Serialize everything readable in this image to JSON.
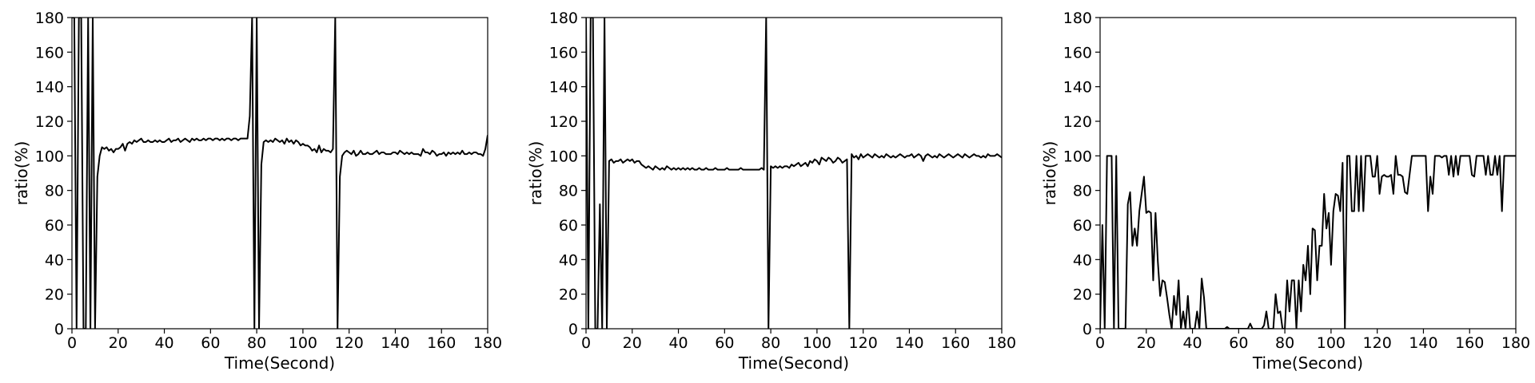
{
  "chart_data": [
    {
      "type": "line",
      "xlabel": "Time(Second)",
      "ylabel": "ratio(%)",
      "xlim": [
        0,
        180
      ],
      "ylim": [
        0,
        180
      ],
      "xticks": [
        0,
        20,
        40,
        60,
        80,
        100,
        120,
        140,
        160,
        180
      ],
      "yticks": [
        0,
        20,
        40,
        60,
        80,
        100,
        120,
        140,
        160,
        180
      ],
      "grid": false,
      "series": [
        {
          "x": [
            0,
            1,
            2,
            3,
            4,
            5,
            6,
            7,
            8,
            9,
            10,
            11,
            12,
            13,
            14,
            15,
            16,
            17,
            18,
            19,
            20,
            21,
            22,
            23,
            24,
            25,
            26,
            27,
            28,
            29,
            30,
            31,
            32,
            33,
            34,
            35,
            36,
            37,
            38,
            39,
            40,
            41,
            42,
            43,
            44,
            45,
            46,
            47,
            48,
            49,
            50,
            51,
            52,
            53,
            54,
            55,
            56,
            57,
            58,
            59,
            60,
            61,
            62,
            63,
            64,
            65,
            66,
            67,
            68,
            69,
            70,
            71,
            72,
            73,
            74,
            75,
            76,
            77,
            78,
            79,
            80,
            81,
            82,
            83,
            84,
            85,
            86,
            87,
            88,
            89,
            90,
            91,
            92,
            93,
            94,
            95,
            96,
            97,
            98,
            99,
            100,
            101,
            102,
            103,
            104,
            105,
            106,
            107,
            108,
            109,
            110,
            111,
            112,
            113,
            114,
            115,
            116,
            117,
            118,
            119,
            120,
            121,
            122,
            123,
            124,
            125,
            126,
            127,
            128,
            129,
            130,
            131,
            132,
            133,
            134,
            135,
            136,
            137,
            138,
            139,
            140,
            141,
            142,
            143,
            144,
            145,
            146,
            147,
            148,
            149,
            150,
            151,
            152,
            153,
            154,
            155,
            156,
            157,
            158,
            159,
            160,
            161,
            162,
            163,
            164,
            165,
            166,
            167,
            168,
            169,
            170,
            171,
            172,
            173,
            174,
            175,
            176,
            177,
            178,
            179,
            180
          ],
          "y": [
            180,
            180,
            0,
            180,
            180,
            0,
            0,
            180,
            0,
            180,
            0,
            88,
            100,
            105,
            104,
            105,
            103,
            104,
            102,
            104,
            104,
            105,
            107,
            103,
            107,
            108,
            107,
            109,
            108,
            109,
            110,
            108,
            108,
            109,
            108,
            108,
            109,
            108,
            109,
            108,
            108,
            109,
            110,
            108,
            109,
            109,
            110,
            108,
            109,
            110,
            109,
            108,
            110,
            109,
            110,
            109,
            109,
            110,
            109,
            110,
            110,
            109,
            110,
            110,
            109,
            110,
            109,
            110,
            110,
            109,
            110,
            110,
            109,
            110,
            110,
            110,
            110,
            123,
            180,
            0,
            180,
            0,
            95,
            108,
            109,
            108,
            109,
            108,
            110,
            109,
            108,
            109,
            107,
            110,
            108,
            109,
            107,
            109,
            108,
            106,
            107,
            106,
            106,
            105,
            103,
            104,
            102,
            106,
            102,
            104,
            103,
            103,
            102,
            104,
            180,
            0,
            88,
            100,
            102,
            103,
            102,
            101,
            103,
            100,
            101,
            103,
            101,
            101,
            102,
            101,
            101,
            102,
            103,
            101,
            102,
            102,
            101,
            101,
            101,
            102,
            102,
            101,
            103,
            102,
            101,
            102,
            101,
            102,
            101,
            101,
            101,
            100,
            104,
            102,
            102,
            101,
            103,
            102,
            100,
            101,
            101,
            102,
            100,
            102,
            101,
            102,
            101,
            102,
            101,
            103,
            101,
            101,
            102,
            101,
            102,
            102,
            101,
            101,
            100,
            104,
            112
          ]
        }
      ]
    },
    {
      "type": "line",
      "xlabel": "Time(Second)",
      "ylabel": "ratio(%)",
      "xlim": [
        0,
        180
      ],
      "ylim": [
        0,
        180
      ],
      "xticks": [
        0,
        20,
        40,
        60,
        80,
        100,
        120,
        140,
        160,
        180
      ],
      "yticks": [
        0,
        20,
        40,
        60,
        80,
        100,
        120,
        140,
        160,
        180
      ],
      "grid": false,
      "series": [
        {
          "x": [
            0,
            1,
            2,
            3,
            4,
            5,
            6,
            7,
            8,
            9,
            10,
            11,
            12,
            13,
            14,
            15,
            16,
            17,
            18,
            19,
            20,
            21,
            22,
            23,
            24,
            25,
            26,
            27,
            28,
            29,
            30,
            31,
            32,
            33,
            34,
            35,
            36,
            37,
            38,
            39,
            40,
            41,
            42,
            43,
            44,
            45,
            46,
            47,
            48,
            49,
            50,
            51,
            52,
            53,
            54,
            55,
            56,
            57,
            58,
            59,
            60,
            61,
            62,
            63,
            64,
            65,
            66,
            67,
            68,
            69,
            70,
            71,
            72,
            73,
            74,
            75,
            76,
            77,
            78,
            79,
            80,
            81,
            82,
            83,
            84,
            85,
            86,
            87,
            88,
            89,
            90,
            91,
            92,
            93,
            94,
            95,
            96,
            97,
            98,
            99,
            100,
            101,
            102,
            103,
            104,
            105,
            106,
            107,
            108,
            109,
            110,
            111,
            112,
            113,
            114,
            115,
            116,
            117,
            118,
            119,
            120,
            121,
            122,
            123,
            124,
            125,
            126,
            127,
            128,
            129,
            130,
            131,
            132,
            133,
            134,
            135,
            136,
            137,
            138,
            139,
            140,
            141,
            142,
            143,
            144,
            145,
            146,
            147,
            148,
            149,
            150,
            151,
            152,
            153,
            154,
            155,
            156,
            157,
            158,
            159,
            160,
            161,
            162,
            163,
            164,
            165,
            166,
            167,
            168,
            169,
            170,
            171,
            172,
            173,
            174,
            175,
            176,
            177,
            178,
            179,
            180
          ],
          "y": [
            180,
            0,
            180,
            180,
            0,
            0,
            72,
            0,
            180,
            0,
            97,
            98,
            96,
            97,
            97,
            98,
            96,
            97,
            98,
            97,
            98,
            96,
            97,
            97,
            95,
            94,
            93,
            94,
            93,
            92,
            94,
            93,
            92,
            93,
            92,
            94,
            93,
            92,
            93,
            92,
            93,
            92,
            93,
            92,
            93,
            92,
            93,
            92,
            92,
            93,
            92,
            92,
            93,
            92,
            92,
            92,
            93,
            92,
            92,
            92,
            92,
            93,
            92,
            92,
            92,
            92,
            92,
            93,
            92,
            92,
            92,
            92,
            92,
            92,
            92,
            92,
            93,
            92,
            180,
            0,
            94,
            93,
            94,
            93,
            94,
            93,
            94,
            94,
            93,
            95,
            94,
            95,
            96,
            94,
            95,
            96,
            94,
            97,
            96,
            98,
            97,
            95,
            99,
            98,
            97,
            99,
            98,
            96,
            97,
            99,
            98,
            96,
            97,
            98,
            0,
            101,
            99,
            100,
            98,
            101,
            99,
            100,
            101,
            100,
            99,
            101,
            100,
            99,
            100,
            99,
            101,
            100,
            99,
            100,
            99,
            100,
            101,
            100,
            99,
            100,
            100,
            101,
            99,
            100,
            101,
            100,
            97,
            100,
            101,
            100,
            99,
            100,
            99,
            101,
            100,
            99,
            100,
            101,
            100,
            99,
            100,
            101,
            100,
            99,
            101,
            100,
            99,
            100,
            101,
            100,
            100,
            99,
            100,
            99,
            101,
            100,
            100,
            100,
            101,
            100,
            99
          ]
        }
      ]
    },
    {
      "type": "line",
      "xlabel": "Time(Second)",
      "ylabel": "ratio(%)",
      "xlim": [
        0,
        180
      ],
      "ylim": [
        0,
        180
      ],
      "xticks": [
        0,
        20,
        40,
        60,
        80,
        100,
        120,
        140,
        160,
        180
      ],
      "yticks": [
        0,
        20,
        40,
        60,
        80,
        100,
        120,
        140,
        160,
        180
      ],
      "grid": false,
      "series": [
        {
          "x": [
            0,
            1,
            2,
            3,
            4,
            5,
            6,
            7,
            8,
            9,
            10,
            11,
            12,
            13,
            14,
            15,
            16,
            17,
            18,
            19,
            20,
            21,
            22,
            23,
            24,
            25,
            26,
            27,
            28,
            29,
            30,
            31,
            32,
            33,
            34,
            35,
            36,
            37,
            38,
            39,
            40,
            41,
            42,
            43,
            44,
            45,
            46,
            47,
            48,
            49,
            50,
            51,
            52,
            53,
            54,
            55,
            56,
            57,
            58,
            59,
            60,
            61,
            62,
            63,
            64,
            65,
            66,
            67,
            68,
            69,
            70,
            71,
            72,
            73,
            74,
            75,
            76,
            77,
            78,
            79,
            80,
            81,
            82,
            83,
            84,
            85,
            86,
            87,
            88,
            89,
            90,
            91,
            92,
            93,
            94,
            95,
            96,
            97,
            98,
            99,
            100,
            101,
            102,
            103,
            104,
            105,
            106,
            107,
            108,
            109,
            110,
            111,
            112,
            113,
            114,
            115,
            116,
            117,
            118,
            119,
            120,
            121,
            122,
            123,
            124,
            125,
            126,
            127,
            128,
            129,
            130,
            131,
            132,
            133,
            134,
            135,
            136,
            137,
            138,
            139,
            140,
            141,
            142,
            143,
            144,
            145,
            146,
            147,
            148,
            149,
            150,
            151,
            152,
            153,
            154,
            155,
            156,
            157,
            158,
            159,
            160,
            161,
            162,
            163,
            164,
            165,
            166,
            167,
            168,
            169,
            170,
            171,
            172,
            173,
            174,
            175,
            176,
            177,
            178,
            179,
            180
          ],
          "y": [
            0,
            60,
            0,
            100,
            100,
            100,
            0,
            100,
            0,
            0,
            0,
            0,
            72,
            79,
            48,
            58,
            48,
            68,
            78,
            88,
            67,
            68,
            67,
            28,
            67,
            39,
            19,
            28,
            27,
            18,
            8,
            0,
            19,
            8,
            28,
            0,
            10,
            0,
            19,
            0,
            0,
            0,
            10,
            0,
            29,
            18,
            0,
            0,
            0,
            0,
            0,
            0,
            0,
            0,
            0,
            1,
            0,
            0,
            0,
            0,
            0,
            0,
            0,
            0,
            0,
            3,
            0,
            0,
            0,
            0,
            0,
            2,
            10,
            0,
            0,
            0,
            20,
            9,
            10,
            0,
            0,
            28,
            10,
            28,
            28,
            0,
            28,
            10,
            37,
            28,
            48,
            20,
            58,
            57,
            28,
            48,
            48,
            78,
            58,
            67,
            37,
            68,
            78,
            77,
            68,
            96,
            0,
            100,
            100,
            68,
            68,
            100,
            68,
            100,
            68,
            100,
            100,
            100,
            88,
            88,
            100,
            78,
            88,
            89,
            88,
            88,
            89,
            78,
            100,
            89,
            89,
            88,
            79,
            78,
            89,
            100,
            100,
            100,
            100,
            100,
            100,
            100,
            68,
            88,
            78,
            100,
            100,
            100,
            99,
            100,
            100,
            89,
            100,
            88,
            100,
            89,
            100,
            100,
            100,
            100,
            100,
            89,
            88,
            100,
            100,
            100,
            100,
            89,
            100,
            89,
            89,
            100,
            89,
            100,
            68,
            100,
            100,
            100,
            100,
            100,
            100
          ]
        }
      ]
    }
  ]
}
